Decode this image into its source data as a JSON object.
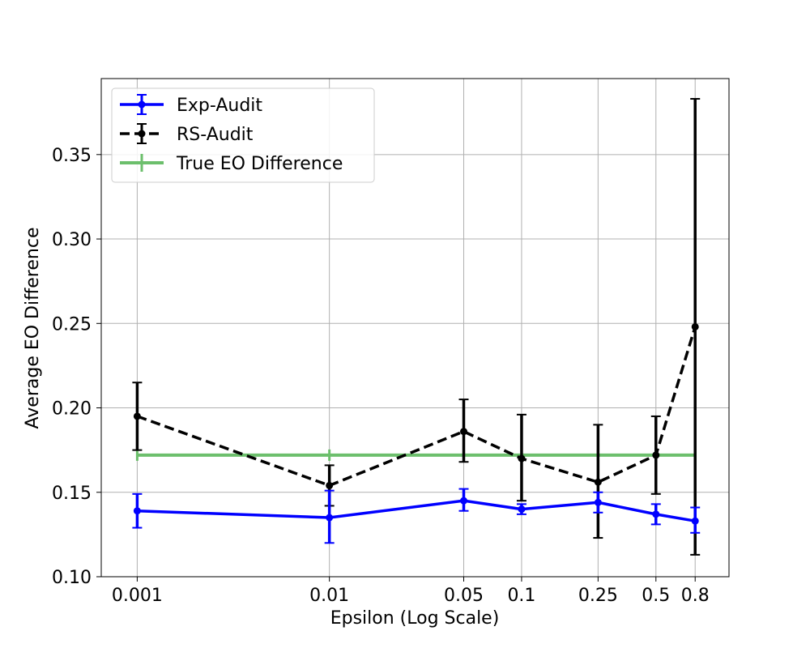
{
  "chart_data": {
    "type": "line",
    "xlabel": "Epsilon (Log Scale)",
    "ylabel": "Average EO Difference",
    "x_scale": "log",
    "x": [
      0.001,
      0.01,
      0.05,
      0.1,
      0.25,
      0.5,
      0.8
    ],
    "x_tick_labels": [
      "0.001",
      "0.01",
      "0.05",
      "0.1",
      "0.25",
      "0.5",
      "0.8"
    ],
    "y_ticks": [
      0.1,
      0.15,
      0.2,
      0.25,
      0.3,
      0.35
    ],
    "y_tick_labels": [
      "0.10",
      "0.15",
      "0.20",
      "0.25",
      "0.30",
      "0.35"
    ],
    "ylim": [
      0.1,
      0.395
    ],
    "xlim": [
      0.00065,
      1.2
    ],
    "grid": true,
    "legend_position": "top-left",
    "series": [
      {
        "name": "Exp-Audit",
        "color": "#0000ff",
        "style": "solid",
        "marker": "circle",
        "values": [
          0.139,
          0.135,
          0.145,
          0.14,
          0.144,
          0.137,
          0.133
        ],
        "err_low": [
          0.129,
          0.12,
          0.139,
          0.137,
          0.138,
          0.131,
          0.126
        ],
        "err_high": [
          0.149,
          0.151,
          0.152,
          0.143,
          0.15,
          0.143,
          0.141
        ]
      },
      {
        "name": "RS-Audit",
        "color": "#000000",
        "style": "dashed",
        "marker": "circle",
        "values": [
          0.195,
          0.154,
          0.186,
          0.17,
          0.156,
          0.172,
          0.248
        ],
        "err_low": [
          0.175,
          0.142,
          0.168,
          0.145,
          0.123,
          0.149,
          0.113
        ],
        "err_high": [
          0.215,
          0.166,
          0.205,
          0.196,
          0.19,
          0.195,
          0.383
        ]
      },
      {
        "name": "True EO Difference",
        "color": "#6cbf6c",
        "style": "solid",
        "marker": "vline",
        "values": [
          0.172,
          0.172,
          0.172,
          0.172,
          0.172,
          0.172,
          0.172
        ]
      }
    ]
  }
}
